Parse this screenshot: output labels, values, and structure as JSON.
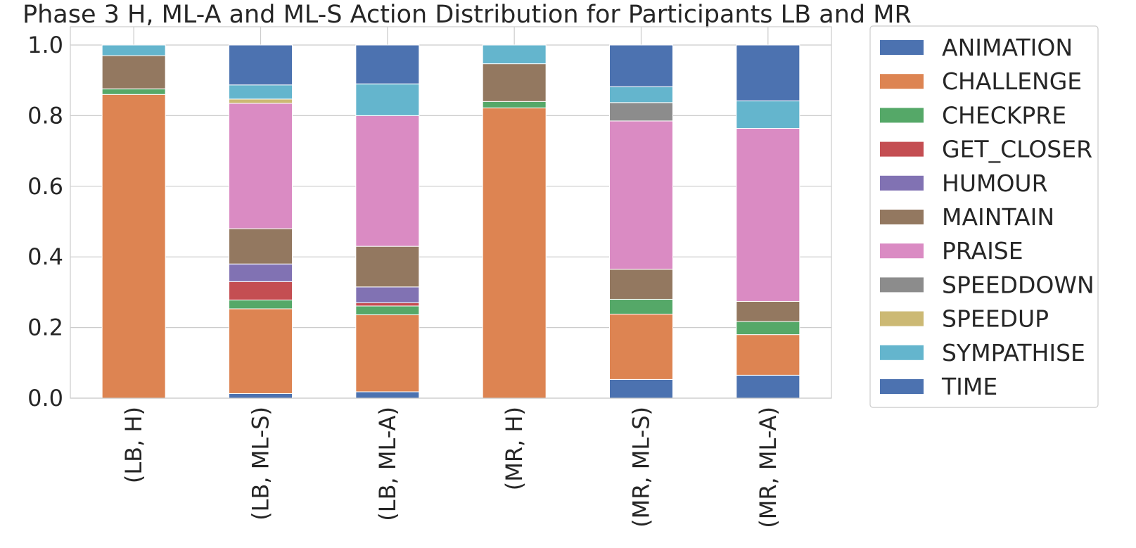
{
  "chart_data": {
    "type": "bar",
    "stacked": true,
    "title": "Phase 3 H, ML-A and ML-S Action Distribution for Participants LB and MR",
    "xlabel": "",
    "ylabel": "",
    "ylim": [
      0,
      1.05
    ],
    "yticks": [
      "0.0",
      "0.2",
      "0.4",
      "0.6",
      "0.8",
      "1.0"
    ],
    "grid": true,
    "legend_position": "right-outside",
    "categories": [
      "(LB, H)",
      "(LB, ML-S)",
      "(LB, ML-A)",
      "(MR, H)",
      "(MR, ML-S)",
      "(MR, ML-A)"
    ],
    "series": [
      {
        "name": "TIME",
        "color": "#4c72b0",
        "values": [
          0.0,
          0.013,
          0.018,
          0.0,
          0.053,
          0.065
        ]
      },
      {
        "name": "CHALLENGE",
        "color": "#dd8452",
        "values": [
          0.86,
          0.24,
          0.218,
          0.822,
          0.185,
          0.115
        ]
      },
      {
        "name": "CHECKPRE",
        "color": "#55a868",
        "values": [
          0.016,
          0.025,
          0.025,
          0.018,
          0.042,
          0.037
        ]
      },
      {
        "name": "GET_CLOSER",
        "color": "#c44e52",
        "values": [
          0.0,
          0.052,
          0.009,
          0.0,
          0.0,
          0.0
        ]
      },
      {
        "name": "HUMOUR",
        "color": "#8172b3",
        "values": [
          0.0,
          0.05,
          0.045,
          0.0,
          0.0,
          0.0
        ]
      },
      {
        "name": "MAINTAIN",
        "color": "#937860",
        "values": [
          0.094,
          0.1,
          0.115,
          0.107,
          0.085,
          0.057
        ]
      },
      {
        "name": "PRAISE",
        "color": "#da8bc3",
        "values": [
          0.0,
          0.355,
          0.37,
          0.0,
          0.42,
          0.49
        ]
      },
      {
        "name": "SPEEDDOWN",
        "color": "#8c8c8c",
        "values": [
          0.0,
          0.0,
          0.0,
          0.0,
          0.052,
          0.0
        ]
      },
      {
        "name": "SPEEDUP",
        "color": "#ccb974",
        "values": [
          0.0,
          0.012,
          0.0,
          0.0,
          0.0,
          0.0
        ]
      },
      {
        "name": "SYMPATHISE",
        "color": "#64b5cd",
        "values": [
          0.03,
          0.04,
          0.09,
          0.053,
          0.045,
          0.078
        ]
      },
      {
        "name": "ANIMATION",
        "color": "#4c72b0",
        "values": [
          0.0,
          0.113,
          0.11,
          0.0,
          0.118,
          0.158
        ]
      }
    ],
    "legend_order": [
      "ANIMATION",
      "CHALLENGE",
      "CHECKPRE",
      "GET_CLOSER",
      "HUMOUR",
      "MAINTAIN",
      "PRAISE",
      "SPEEDDOWN",
      "SPEEDUP",
      "SYMPATHISE",
      "TIME"
    ]
  }
}
